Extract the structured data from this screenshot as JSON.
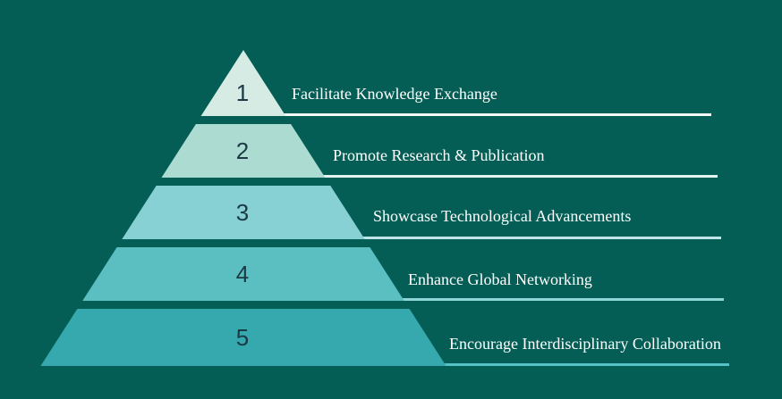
{
  "colors": {
    "background": "#045e55",
    "number_text": "#1b3a44",
    "label_text": "#ffffff"
  },
  "tiers": [
    {
      "number": "1",
      "label": "Facilitate Knowledge Exchange",
      "color": "#d5ebe4",
      "line_color": "#f4f9f7"
    },
    {
      "number": "2",
      "label": "Promote Research & Publication",
      "color": "#acdbd1",
      "line_color": "#e4f3ef"
    },
    {
      "number": "3",
      "label": "Showcase Technological Advancements",
      "color": "#87d1d4",
      "line_color": "#bfe6e6"
    },
    {
      "number": "4",
      "label": "Enhance Global Networking",
      "color": "#5bbfc2",
      "line_color": "#8ed6d8"
    },
    {
      "number": "5",
      "label": "Encourage Interdisciplinary Collaboration",
      "color": "#35a9ae",
      "line_color": "#56c2c6"
    }
  ]
}
